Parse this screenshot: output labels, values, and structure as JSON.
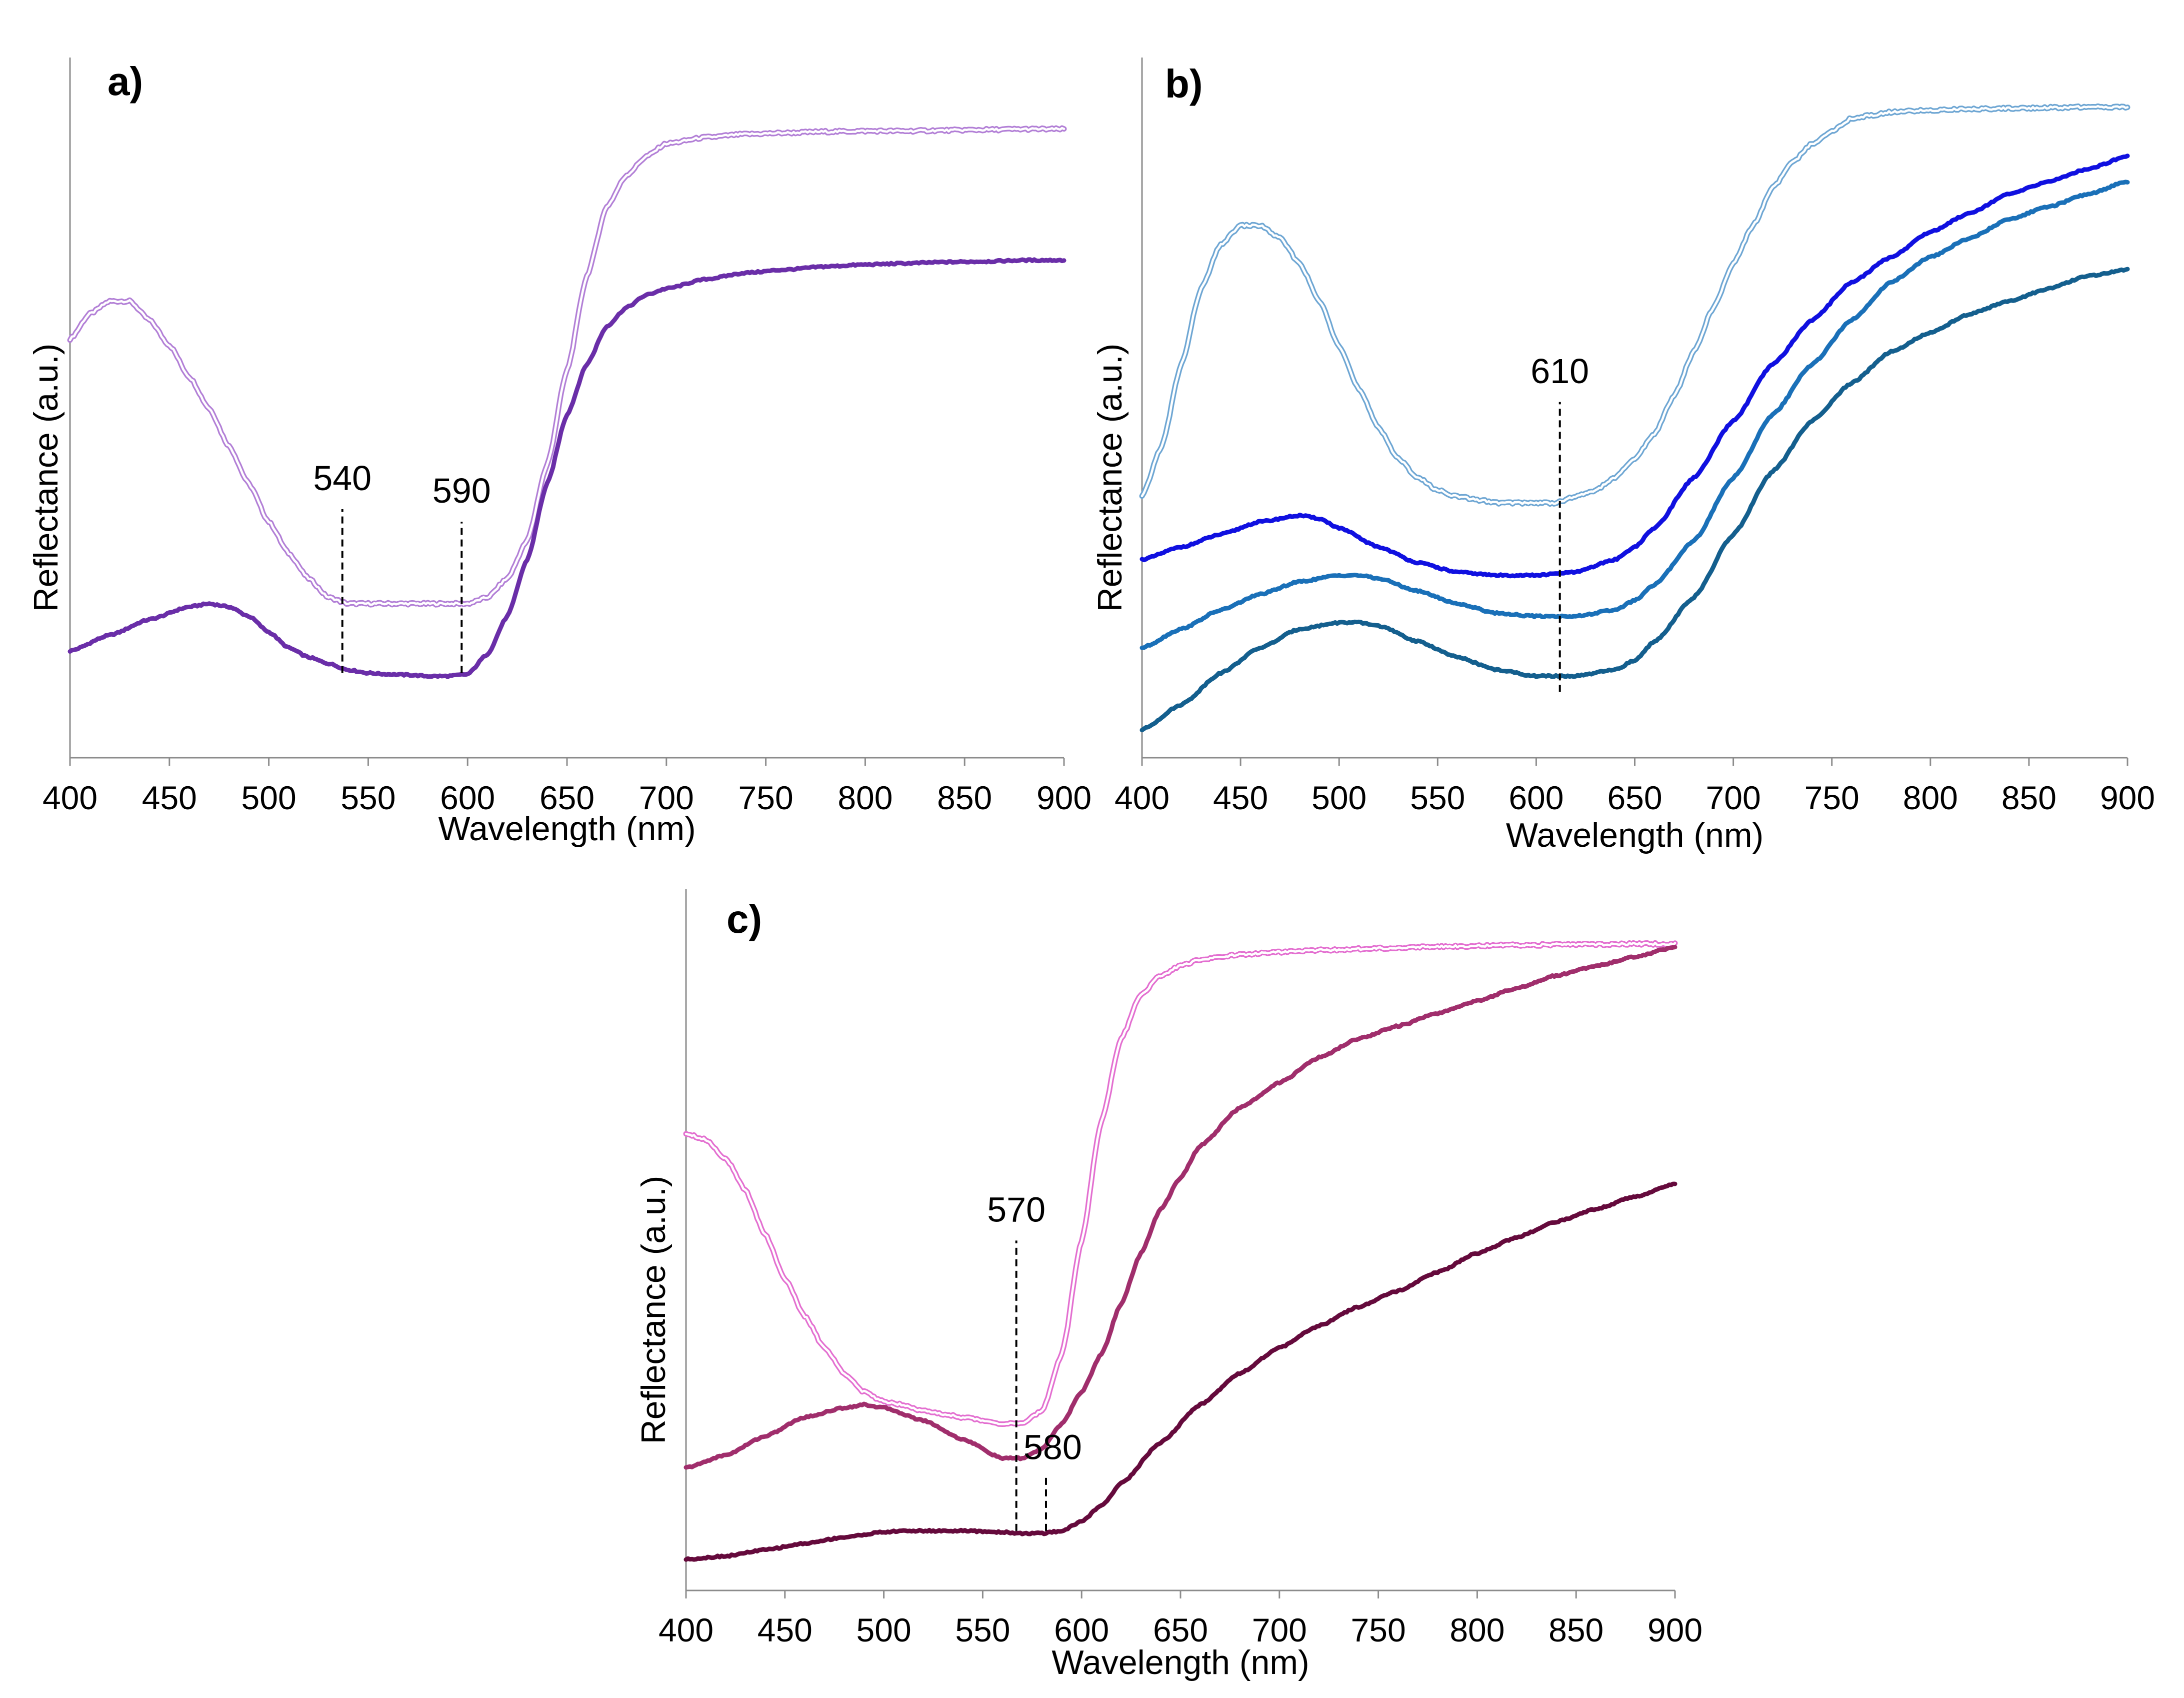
{
  "chart_data": [
    {
      "type": "line",
      "panel_label": "a)",
      "xlabel": "Wavelength (nm)",
      "ylabel": "Reflectance (a.u.)",
      "xlim": [
        400,
        900
      ],
      "ylim": [
        0,
        1
      ],
      "x_ticks": [
        "400",
        "450",
        "500",
        "550",
        "600",
        "650",
        "700",
        "750",
        "800",
        "850",
        "900"
      ],
      "annotations": [
        {
          "label": "540",
          "x": 537,
          "y_from": 0.09,
          "y_to": 0.35
        },
        {
          "label": "590",
          "x": 597,
          "y_from": 0.09,
          "y_to": 0.33
        }
      ],
      "series": [
        {
          "name": "a-light",
          "style": "double",
          "color": "#b27fd6",
          "x": [
            400,
            410,
            420,
            430,
            440,
            450,
            460,
            470,
            480,
            490,
            500,
            510,
            520,
            530,
            540,
            550,
            560,
            570,
            580,
            590,
            600,
            610,
            620,
            630,
            640,
            650,
            660,
            670,
            680,
            690,
            700,
            720,
            740,
            760,
            780,
            800,
            820,
            840,
            860,
            880,
            900
          ],
          "y": [
            0.62,
            0.66,
            0.68,
            0.68,
            0.65,
            0.61,
            0.56,
            0.51,
            0.45,
            0.39,
            0.33,
            0.28,
            0.24,
            0.21,
            0.2,
            0.2,
            0.2,
            0.2,
            0.2,
            0.2,
            0.2,
            0.21,
            0.24,
            0.3,
            0.42,
            0.57,
            0.72,
            0.83,
            0.88,
            0.91,
            0.93,
            0.94,
            0.945,
            0.947,
            0.949,
            0.95,
            0.95,
            0.951,
            0.952,
            0.953,
            0.953
          ]
        },
        {
          "name": "a-dark",
          "style": "solid",
          "color": "#6a2ea8",
          "x": [
            400,
            420,
            440,
            460,
            470,
            480,
            490,
            500,
            510,
            520,
            530,
            540,
            550,
            560,
            570,
            580,
            590,
            600,
            610,
            620,
            630,
            640,
            650,
            660,
            670,
            680,
            690,
            700,
            720,
            740,
            760,
            780,
            800,
            820,
            840,
            860,
            880,
            900
          ],
          "y": [
            0.125,
            0.15,
            0.175,
            0.195,
            0.2,
            0.195,
            0.18,
            0.155,
            0.13,
            0.115,
            0.105,
            0.095,
            0.09,
            0.088,
            0.087,
            0.085,
            0.085,
            0.088,
            0.12,
            0.18,
            0.27,
            0.39,
            0.5,
            0.58,
            0.64,
            0.67,
            0.69,
            0.7,
            0.715,
            0.725,
            0.73,
            0.735,
            0.738,
            0.74,
            0.742,
            0.743,
            0.745,
            0.745
          ]
        }
      ]
    },
    {
      "type": "line",
      "panel_label": "b)",
      "xlabel": "Wavelength (nm)",
      "ylabel": "Reflectance (a.u.)",
      "xlim": [
        400,
        900
      ],
      "ylim": [
        0,
        1
      ],
      "x_ticks": [
        "400",
        "450",
        "500",
        "550",
        "600",
        "650",
        "700",
        "750",
        "800",
        "850",
        "900"
      ],
      "annotations": [
        {
          "label": "610",
          "x": 612,
          "y_from": 0.06,
          "y_to": 0.52
        }
      ],
      "series": [
        {
          "name": "b-light",
          "style": "double",
          "color": "#6ea6d3",
          "x": [
            400,
            410,
            420,
            430,
            440,
            450,
            460,
            470,
            480,
            490,
            500,
            510,
            520,
            530,
            540,
            550,
            560,
            570,
            580,
            590,
            600,
            610,
            620,
            630,
            640,
            650,
            660,
            670,
            680,
            690,
            700,
            710,
            720,
            730,
            740,
            750,
            760,
            770,
            780,
            800,
            820,
            840,
            860,
            880,
            900
          ],
          "y": [
            0.37,
            0.45,
            0.58,
            0.7,
            0.77,
            0.8,
            0.8,
            0.78,
            0.74,
            0.68,
            0.61,
            0.54,
            0.48,
            0.43,
            0.4,
            0.38,
            0.37,
            0.365,
            0.36,
            0.36,
            0.36,
            0.36,
            0.37,
            0.38,
            0.4,
            0.43,
            0.47,
            0.53,
            0.6,
            0.67,
            0.74,
            0.8,
            0.86,
            0.9,
            0.93,
            0.95,
            0.97,
            0.975,
            0.98,
            0.983,
            0.985,
            0.986,
            0.987,
            0.988,
            0.988
          ]
        },
        {
          "name": "b-blue",
          "style": "solid",
          "color": "#1010e0",
          "x": [
            400,
            420,
            440,
            460,
            480,
            490,
            500,
            520,
            540,
            560,
            580,
            600,
            620,
            640,
            650,
            660,
            680,
            700,
            720,
            740,
            760,
            780,
            800,
            820,
            840,
            860,
            880,
            900
          ],
          "y": [
            0.27,
            0.29,
            0.31,
            0.33,
            0.34,
            0.335,
            0.32,
            0.29,
            0.265,
            0.25,
            0.245,
            0.245,
            0.25,
            0.27,
            0.29,
            0.32,
            0.4,
            0.49,
            0.58,
            0.65,
            0.71,
            0.75,
            0.79,
            0.82,
            0.85,
            0.87,
            0.89,
            0.91
          ]
        },
        {
          "name": "b-mid",
          "style": "solid",
          "color": "#1a70b8",
          "x": [
            400,
            420,
            440,
            460,
            480,
            500,
            510,
            520,
            540,
            560,
            580,
            600,
            620,
            640,
            650,
            660,
            680,
            700,
            720,
            740,
            760,
            780,
            800,
            820,
            840,
            860,
            880,
            900
          ],
          "y": [
            0.13,
            0.16,
            0.19,
            0.215,
            0.235,
            0.245,
            0.245,
            0.24,
            0.22,
            0.2,
            0.185,
            0.18,
            0.18,
            0.19,
            0.205,
            0.23,
            0.3,
            0.4,
            0.5,
            0.58,
            0.65,
            0.71,
            0.75,
            0.78,
            0.81,
            0.83,
            0.85,
            0.87
          ]
        },
        {
          "name": "b-dark",
          "style": "solid",
          "color": "#145f8e",
          "x": [
            400,
            420,
            440,
            460,
            480,
            500,
            510,
            520,
            540,
            560,
            580,
            600,
            620,
            640,
            650,
            660,
            680,
            700,
            720,
            740,
            760,
            780,
            800,
            820,
            840,
            860,
            880,
            900
          ],
          "y": [
            0.0,
            0.04,
            0.09,
            0.13,
            0.16,
            0.17,
            0.17,
            0.165,
            0.14,
            0.115,
            0.095,
            0.085,
            0.085,
            0.095,
            0.11,
            0.14,
            0.21,
            0.31,
            0.41,
            0.49,
            0.55,
            0.6,
            0.63,
            0.66,
            0.68,
            0.7,
            0.72,
            0.73
          ]
        }
      ]
    },
    {
      "type": "line",
      "panel_label": "c)",
      "xlabel": "Wavelength (nm)",
      "ylabel": "Reflectance (a.u.)",
      "xlim": [
        400,
        900
      ],
      "ylim": [
        0,
        1
      ],
      "x_ticks": [
        "400",
        "450",
        "500",
        "550",
        "600",
        "650",
        "700",
        "750",
        "800",
        "850",
        "900"
      ],
      "annotations": [
        {
          "label": "570",
          "x": 567,
          "y_from": 0.05,
          "y_to": 0.51
        },
        {
          "label": "580",
          "x": 582,
          "y_from": 0.05,
          "y_to": 0.14
        }
      ],
      "series": [
        {
          "name": "c-light",
          "style": "double",
          "color": "#e36fd0",
          "x": [
            400,
            410,
            420,
            430,
            440,
            450,
            460,
            470,
            480,
            490,
            500,
            510,
            520,
            530,
            540,
            550,
            560,
            570,
            580,
            590,
            600,
            610,
            620,
            630,
            640,
            650,
            660,
            670,
            680,
            700,
            720,
            740,
            760,
            780,
            800,
            820,
            840,
            860,
            880,
            900
          ],
          "y": [
            0.68,
            0.67,
            0.64,
            0.59,
            0.52,
            0.45,
            0.39,
            0.34,
            0.3,
            0.27,
            0.255,
            0.25,
            0.24,
            0.235,
            0.23,
            0.225,
            0.22,
            0.22,
            0.24,
            0.33,
            0.51,
            0.7,
            0.83,
            0.9,
            0.93,
            0.945,
            0.955,
            0.96,
            0.963,
            0.967,
            0.97,
            0.972,
            0.974,
            0.976,
            0.977,
            0.978,
            0.979,
            0.979,
            0.98,
            0.98
          ]
        },
        {
          "name": "c-mid",
          "style": "solid",
          "color": "#a02e6c",
          "x": [
            400,
            420,
            440,
            460,
            480,
            490,
            500,
            520,
            540,
            560,
            570,
            580,
            590,
            600,
            610,
            620,
            630,
            640,
            650,
            660,
            680,
            700,
            720,
            740,
            760,
            780,
            800,
            820,
            840,
            860,
            880,
            900
          ],
          "y": [
            0.15,
            0.17,
            0.2,
            0.23,
            0.245,
            0.25,
            0.245,
            0.225,
            0.195,
            0.165,
            0.165,
            0.18,
            0.22,
            0.27,
            0.33,
            0.41,
            0.49,
            0.56,
            0.61,
            0.66,
            0.72,
            0.76,
            0.8,
            0.83,
            0.85,
            0.87,
            0.89,
            0.91,
            0.93,
            0.945,
            0.96,
            0.975
          ]
        },
        {
          "name": "c-dark",
          "style": "solid",
          "color": "#650a3c",
          "x": [
            400,
            420,
            440,
            460,
            480,
            500,
            510,
            520,
            540,
            560,
            570,
            580,
            590,
            600,
            610,
            620,
            640,
            660,
            680,
            700,
            720,
            740,
            760,
            780,
            800,
            820,
            840,
            860,
            880,
            900
          ],
          "y": [
            0.005,
            0.01,
            0.02,
            0.03,
            0.04,
            0.048,
            0.05,
            0.05,
            0.05,
            0.048,
            0.046,
            0.046,
            0.05,
            0.065,
            0.09,
            0.125,
            0.19,
            0.25,
            0.3,
            0.34,
            0.375,
            0.405,
            0.43,
            0.46,
            0.49,
            0.515,
            0.54,
            0.56,
            0.58,
            0.6
          ]
        }
      ]
    }
  ]
}
